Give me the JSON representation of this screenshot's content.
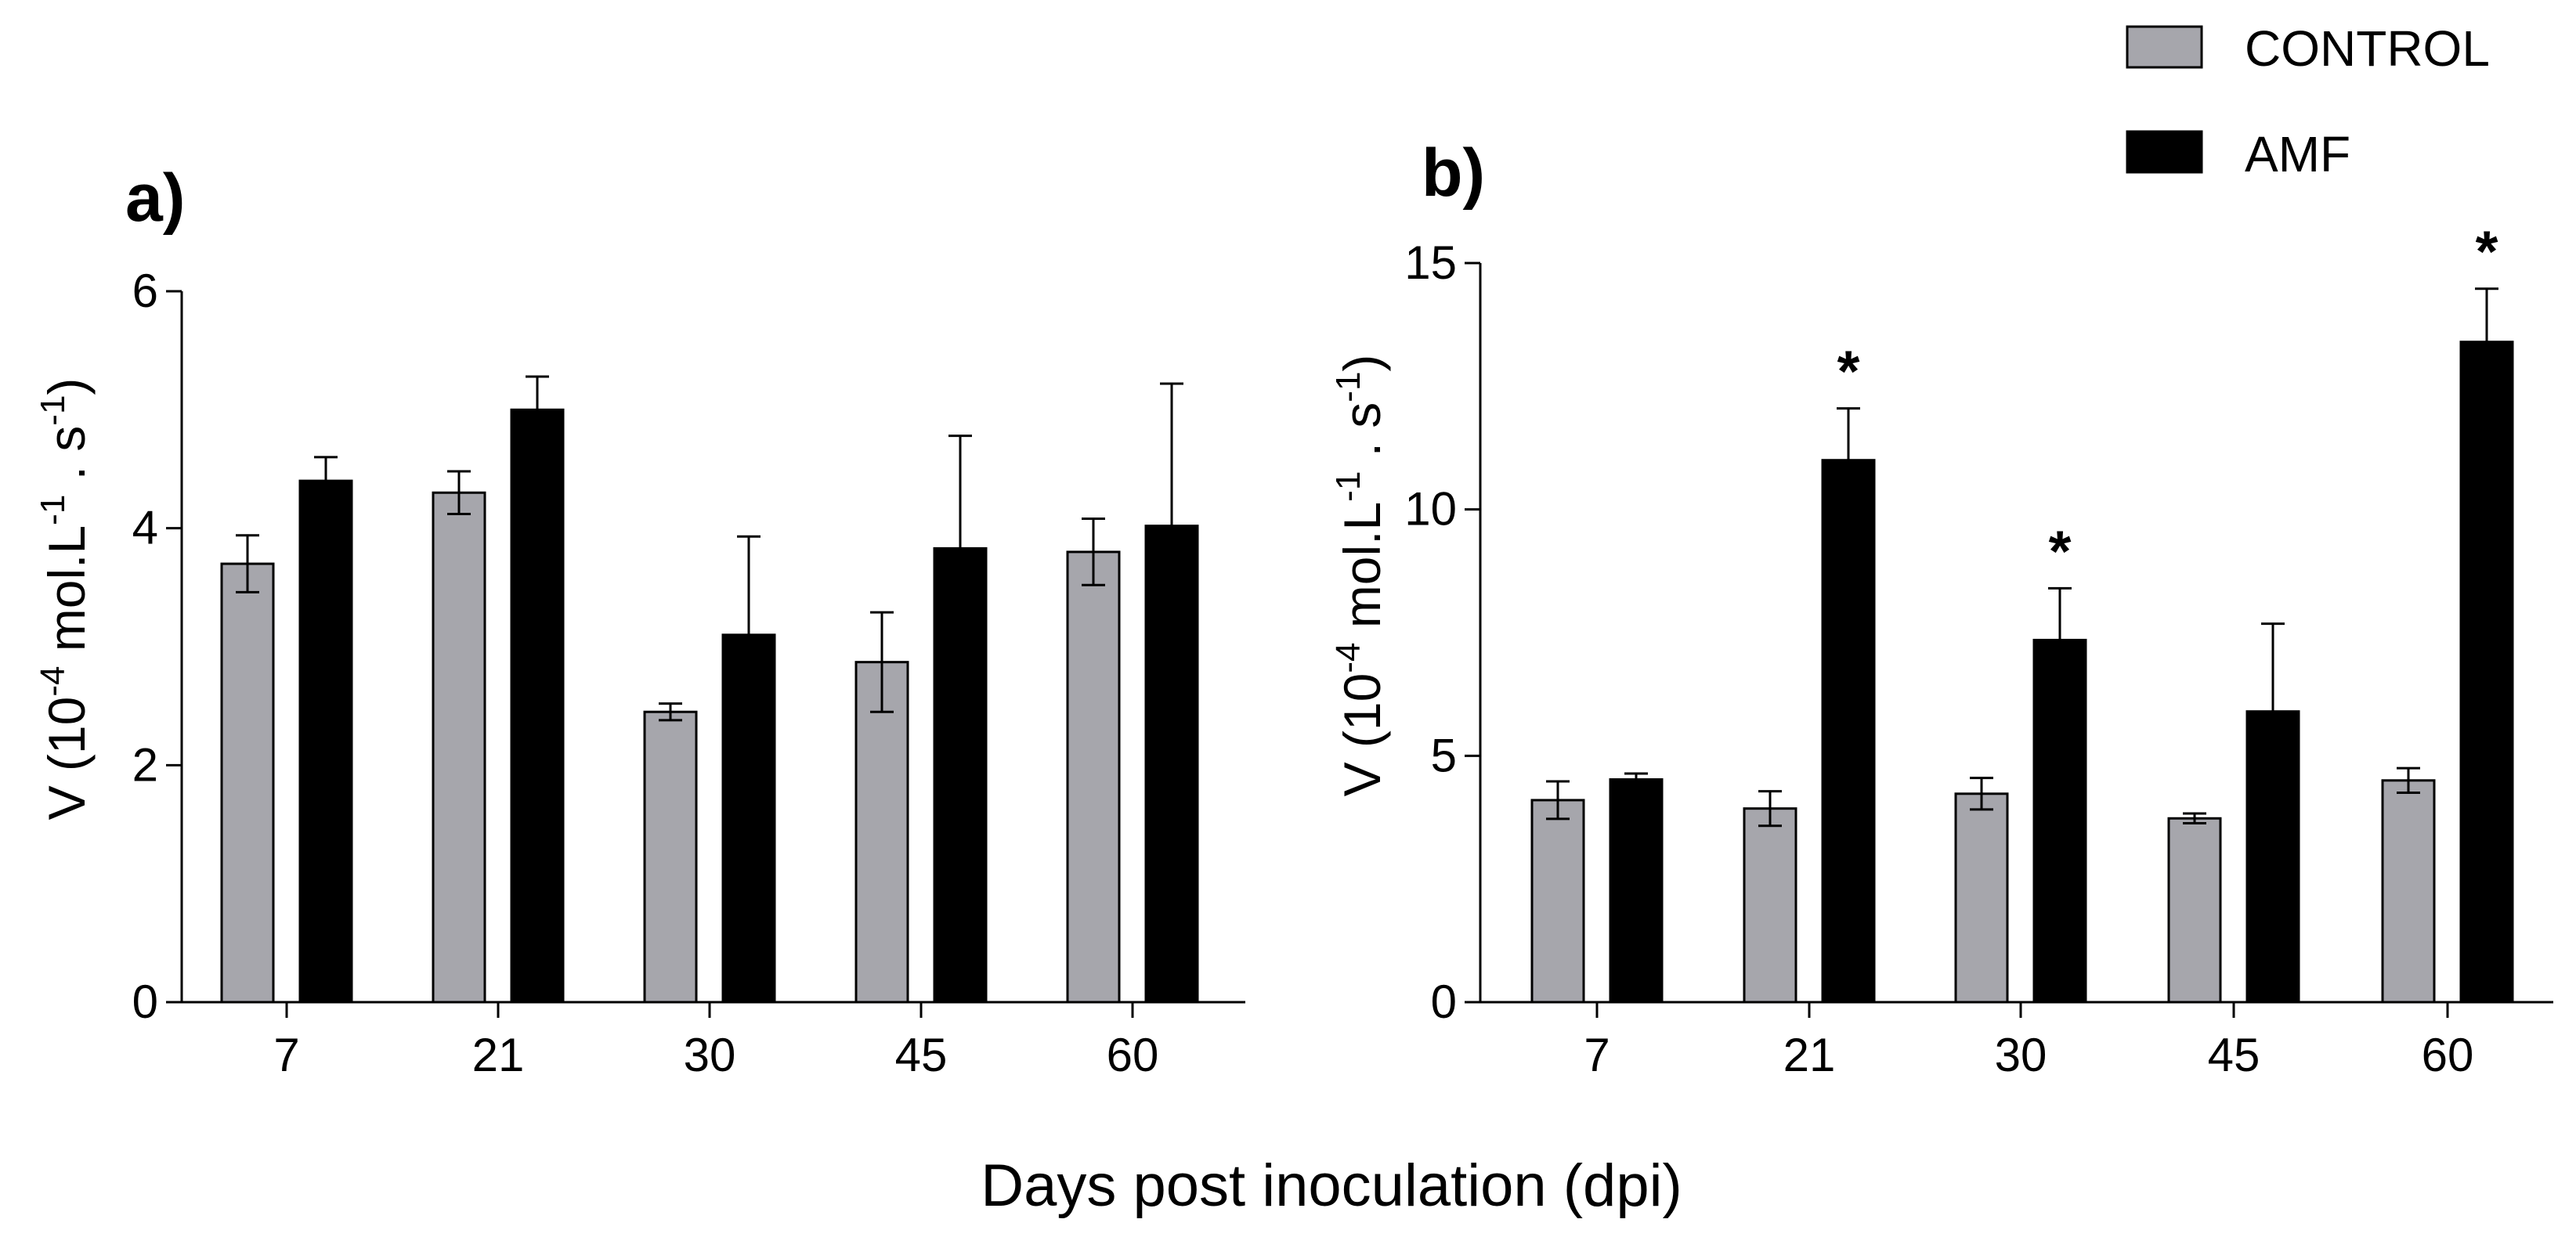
{
  "legend": [
    {
      "name": "CONTROL",
      "color": "#a6a6ac"
    },
    {
      "name": "AMF",
      "color": "#000000"
    }
  ],
  "xlabel": "Days post inoculation (dpi)",
  "chart_data": [
    {
      "type": "bar",
      "panel_label": "a)",
      "categories": [
        "7",
        "21",
        "30",
        "45",
        "60"
      ],
      "ylabel_main": "V (10",
      "ylabel_exp": "-4",
      "ylabel_unit": " mol.L",
      "ylabel_exp2": "-1",
      "ylabel_mid": " . s",
      "ylabel_exp3": "-1",
      "ylabel_end": ")",
      "ylim": [
        0,
        6
      ],
      "yticks": [
        "0",
        "2",
        "4",
        "6"
      ],
      "series": [
        {
          "name": "CONTROL",
          "values": [
            3.7,
            4.3,
            2.45,
            2.87,
            3.8
          ],
          "errors": [
            0.24,
            0.18,
            0.07,
            0.42,
            0.28
          ]
        },
        {
          "name": "AMF",
          "values": [
            4.4,
            5.0,
            3.1,
            3.83,
            4.02
          ],
          "errors": [
            0.2,
            0.28,
            0.83,
            0.95,
            1.2
          ]
        }
      ],
      "annotations": [
        "",
        "",
        "",
        "",
        ""
      ]
    },
    {
      "type": "bar",
      "panel_label": "b)",
      "categories": [
        "7",
        "21",
        "30",
        "45",
        "60"
      ],
      "ylabel_main": "V (10",
      "ylabel_exp": "-4",
      "ylabel_unit": " mol.L",
      "ylabel_exp2": "-1",
      "ylabel_mid": " . s",
      "ylabel_exp3": "-1",
      "ylabel_end": ")",
      "ylim": [
        0,
        15
      ],
      "yticks": [
        "0",
        "5",
        "10",
        "15"
      ],
      "series": [
        {
          "name": "CONTROL",
          "values": [
            4.1,
            3.93,
            4.23,
            3.73,
            4.5
          ],
          "errors": [
            0.38,
            0.35,
            0.32,
            0.1,
            0.25
          ]
        },
        {
          "name": "AMF",
          "values": [
            4.52,
            11.0,
            7.35,
            5.9,
            13.4
          ],
          "errors": [
            0.12,
            1.05,
            1.05,
            1.78,
            1.08
          ]
        }
      ],
      "annotations": [
        "",
        "*",
        "*",
        "",
        "*"
      ]
    }
  ]
}
